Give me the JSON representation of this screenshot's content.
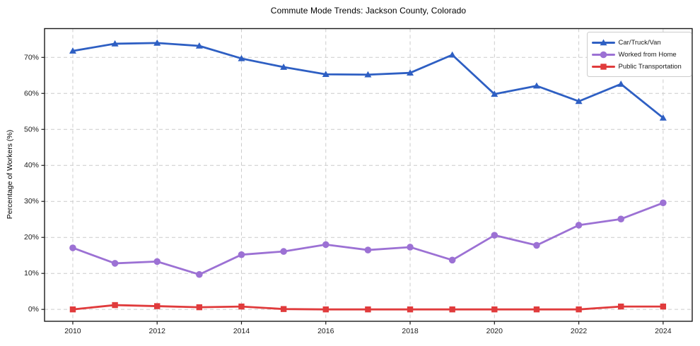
{
  "chart_data": {
    "type": "line",
    "title": "Commute Mode Trends: Jackson County, Colorado",
    "xlabel": "",
    "ylabel": "Percentage of Workers (%)",
    "x": [
      2010,
      2011,
      2012,
      2013,
      2014,
      2015,
      2016,
      2017,
      2018,
      2019,
      2020,
      2021,
      2022,
      2023,
      2024
    ],
    "series": [
      {
        "name": "Car/Truck/Van",
        "color": "#2e5fc3",
        "marker": "triangle",
        "values": [
          71.8,
          73.8,
          74.0,
          73.2,
          69.7,
          67.3,
          65.3,
          65.2,
          65.7,
          70.7,
          59.8,
          62.1,
          57.8,
          62.6,
          53.2
        ]
      },
      {
        "name": "Worked from Home",
        "color": "#9c71d4",
        "marker": "circle",
        "values": [
          17.1,
          12.8,
          13.3,
          9.7,
          15.2,
          16.1,
          18.0,
          16.5,
          17.3,
          13.7,
          20.6,
          17.8,
          23.4,
          25.1,
          29.6
        ]
      },
      {
        "name": "Public Transportation",
        "color": "#e03b3c",
        "marker": "square",
        "values": [
          0.0,
          1.2,
          0.9,
          0.6,
          0.8,
          0.1,
          0.0,
          0.0,
          0.0,
          0.0,
          0.0,
          0.0,
          0.0,
          0.8,
          0.8
        ]
      }
    ],
    "xlim": [
      2009.33,
      2024.69
    ],
    "ylim": [
      -3.3,
      78
    ],
    "xticks": [
      2010,
      2012,
      2014,
      2016,
      2018,
      2020,
      2022,
      2024
    ],
    "xtick_labels": [
      "2010",
      "2012",
      "2014",
      "2016",
      "2018",
      "2020",
      "2022",
      "2024"
    ],
    "yticks": [
      0,
      10,
      20,
      30,
      40,
      50,
      60,
      70
    ],
    "ytick_labels": [
      "0%",
      "10%",
      "20%",
      "30%",
      "40%",
      "50%",
      "60%",
      "70%"
    ],
    "grid": true,
    "grid_color": "#cccccc",
    "frame_color": "#1a1a1a",
    "legend_position": "top-right"
  }
}
